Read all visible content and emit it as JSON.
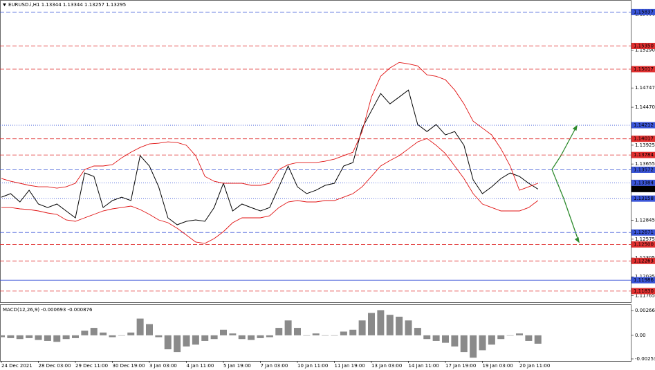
{
  "chart_data": [
    {
      "type": "line",
      "title": "EURUSD.i,H1  1.13344 1.13344 1.13257 1.13295",
      "categories": [
        "24 Dec 2021",
        null,
        null,
        null,
        "28 Dec 03:00",
        null,
        null,
        null,
        "29 Dec 11:00",
        null,
        null,
        null,
        "30 Dec 19:00",
        null,
        null,
        null,
        "3 Jan 03:00",
        null,
        null,
        null,
        "4 Jan 11:00",
        null,
        null,
        null,
        "5 Jan 19:00",
        null,
        null,
        null,
        "7 Jan 03:00",
        null,
        null,
        null,
        "10 Jan 11:00",
        null,
        null,
        null,
        "11 Jan 19:00",
        null,
        null,
        null,
        "13 Jan 03:00",
        null,
        null,
        null,
        "14 Jan 11:00",
        null,
        null,
        null,
        "17 Jan 19:00",
        null,
        null,
        null,
        "19 Jan 03:00",
        null,
        null,
        null,
        "20 Jan 11:00",
        null,
        null
      ],
      "series": [
        {
          "color": "#000000",
          "values": [
            1.13179,
            1.13229,
            1.1311,
            1.13278,
            1.1308,
            1.1303,
            1.1308,
            1.12981,
            1.12882,
            1.13526,
            1.13477,
            1.1303,
            1.1313,
            1.13179,
            1.1313,
            1.13774,
            1.13626,
            1.13328,
            1.12882,
            1.12782,
            1.12832,
            1.12852,
            1.12832,
            1.1303,
            1.13378,
            1.12981,
            1.1308,
            1.1303,
            1.12981,
            1.1303,
            1.13328,
            1.13626,
            1.13328,
            1.13229,
            1.13278,
            1.13348,
            1.13378,
            1.13626,
            1.13675,
            1.14171,
            1.14419,
            1.14667,
            1.14518,
            1.14617,
            1.14717,
            1.14221,
            1.14121,
            1.14221,
            1.14072,
            1.14121,
            1.13923,
            1.13427,
            1.13229,
            1.13328,
            1.13447,
            1.13526,
            1.13477,
            1.13378,
            1.13295
          ]
        },
        {
          "color": "#e01010",
          "values": [
            1.13447,
            1.13407,
            1.13378,
            1.13348,
            1.13328,
            1.13328,
            1.13308,
            1.13328,
            1.13378,
            1.13576,
            1.13626,
            1.13626,
            1.13645,
            1.13744,
            1.13824,
            1.13893,
            1.13943,
            1.13953,
            1.13973,
            1.13963,
            1.13923,
            1.13774,
            1.13477,
            1.13407,
            1.13378,
            1.13378,
            1.13378,
            1.13348,
            1.13348,
            1.13378,
            1.13576,
            1.13645,
            1.13675,
            1.13675,
            1.13675,
            1.13695,
            1.13725,
            1.13774,
            1.13824,
            1.14121,
            1.14617,
            1.14915,
            1.15034,
            1.15113,
            1.15093,
            1.15064,
            1.14935,
            1.14915,
            1.14865,
            1.14717,
            1.14518,
            1.1427,
            1.14171,
            1.14072,
            1.13873,
            1.13626,
            1.13278,
            1.13328,
            1.13378
          ]
        },
        {
          "color": "#e01010",
          "values": [
            1.1303,
            1.1303,
            1.13011,
            1.13001,
            1.12981,
            1.12951,
            1.12931,
            1.12852,
            1.12832,
            1.12882,
            1.12931,
            1.12981,
            1.13011,
            1.1303,
            1.1305,
            1.13001,
            1.12931,
            1.12852,
            1.12812,
            1.12733,
            1.12634,
            1.12534,
            1.12515,
            1.12584,
            1.12683,
            1.12812,
            1.12882,
            1.12882,
            1.12882,
            1.12911,
            1.1303,
            1.1311,
            1.1313,
            1.1311,
            1.1311,
            1.1313,
            1.1313,
            1.13179,
            1.13229,
            1.13328,
            1.13477,
            1.13626,
            1.13705,
            1.13774,
            1.13873,
            1.13973,
            1.14022,
            1.13923,
            1.13804,
            1.13626,
            1.13447,
            1.13229,
            1.1308,
            1.1303,
            1.12981,
            1.12981,
            1.12981,
            1.1303,
            1.1313
          ]
        }
      ],
      "ylim": [
        1.1167,
        1.1601
      ],
      "yticks": [
        1.15806,
        {
          "value": 1.1529,
          "label": "1.15290"
        },
        1.14747,
        {
          "value": 1.1447,
          "label": "1.14470"
        },
        1.13925,
        1.13655,
        1.12845,
        1.12575,
        1.12305,
        1.12035,
        1.11765
      ],
      "levels": [
        {
          "value": 1.15837,
          "color": "#3a55d8",
          "style": "dash"
        },
        {
          "value": 1.1535,
          "label": "1.15350",
          "color": "#e03030",
          "style": "dash"
        },
        {
          "value": 1.15017,
          "color": "#e03030",
          "style": "dash"
        },
        {
          "value": 1.14212,
          "color": "#3a55d8",
          "style": "dot"
        },
        {
          "value": 1.14017,
          "color": "#e03030",
          "style": "dash"
        },
        {
          "value": 1.13784,
          "color": "#e03030",
          "style": "dash"
        },
        {
          "value": 1.13572,
          "color": "#3a55d8",
          "style": "dash"
        },
        {
          "value": 1.13384,
          "color": "#3a55d8",
          "style": "dot"
        },
        {
          "value": 1.13295,
          "color": "#000000",
          "style": "none"
        },
        {
          "value": 1.13158,
          "color": "#3a55d8",
          "style": "dot"
        },
        {
          "value": 1.12671,
          "color": "#3a55d8",
          "style": "dash"
        },
        {
          "value": 1.125,
          "label": "1.12500",
          "color": "#e03030",
          "style": "dash"
        },
        {
          "value": 1.12263,
          "color": "#e03030",
          "style": "dash"
        },
        {
          "value": 1.11986,
          "color": "#3a55d8",
          "style": "solid"
        },
        {
          "value": 1.1183,
          "label": "1.11830",
          "color": "#e03030",
          "style": "dash"
        }
      ]
    },
    {
      "type": "bar",
      "title": "MACD(12,26,9) -0.000693 -0.000876",
      "color": "#8a8a8a",
      "values": [
        -0.0002,
        -0.0003,
        -0.0004,
        -0.0003,
        -0.0005,
        -0.0006,
        -0.0007,
        -0.0004,
        -0.0003,
        0.0005,
        0.0008,
        0.0003,
        -0.0002,
        0.0,
        0.0003,
        0.0018,
        0.0012,
        -0.0002,
        -0.0015,
        -0.0018,
        -0.0012,
        -0.001,
        -0.0006,
        -0.0004,
        0.0006,
        0.0002,
        -0.0004,
        -0.0005,
        -0.0003,
        -0.0002,
        0.0008,
        0.0016,
        0.0008,
        0.0,
        0.0002,
        0.0,
        0.0,
        0.0004,
        0.0006,
        0.0016,
        0.0024,
        0.0027,
        0.0022,
        0.002,
        0.0016,
        0.0008,
        -0.0004,
        -0.0006,
        -0.0008,
        -0.0012,
        -0.0018,
        -0.0024,
        -0.0016,
        -0.001,
        -0.0004,
        0.0,
        0.0002,
        -0.0006,
        -0.0009
      ],
      "ylim": [
        -0.00298,
        0.00333
      ],
      "yticks": [
        0.002661,
        {
          "value": 0,
          "label": "0.00"
        },
        -0.002533
      ]
    }
  ]
}
